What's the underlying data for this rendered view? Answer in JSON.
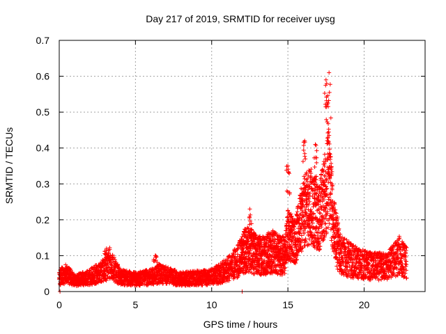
{
  "chart_data": {
    "type": "scatter",
    "title": "Day 217 of 2019, SRMTID for receiver uysg",
    "xlabel": "GPS time / hours",
    "ylabel": "SRMTID / TECUs",
    "xlim": [
      0,
      24
    ],
    "ylim": [
      0,
      0.7
    ],
    "xticks": [
      0,
      5,
      10,
      15,
      20
    ],
    "xtick_labels": [
      "0",
      "5",
      "10",
      "15",
      "20"
    ],
    "yticks": [
      0,
      0.1,
      0.2,
      0.3,
      0.4,
      0.5,
      0.6,
      0.7
    ],
    "ytick_labels": [
      "0",
      "0.1",
      "0.2",
      "0.3",
      "0.4",
      "0.5",
      "0.6",
      "0.7"
    ],
    "grid": true,
    "marker": "+",
    "color": "#ff0000",
    "series": [
      {
        "name": "SRMTID",
        "profile": [
          {
            "x": 0.0,
            "y": 0.04
          },
          {
            "x": 0.5,
            "y": 0.05
          },
          {
            "x": 1.0,
            "y": 0.03
          },
          {
            "x": 2.0,
            "y": 0.04
          },
          {
            "x": 3.0,
            "y": 0.06
          },
          {
            "x": 3.3,
            "y": 0.08
          },
          {
            "x": 4.0,
            "y": 0.04
          },
          {
            "x": 5.0,
            "y": 0.035
          },
          {
            "x": 6.0,
            "y": 0.04
          },
          {
            "x": 6.5,
            "y": 0.05
          },
          {
            "x": 8.0,
            "y": 0.035
          },
          {
            "x": 10.0,
            "y": 0.04
          },
          {
            "x": 11.0,
            "y": 0.06
          },
          {
            "x": 11.8,
            "y": 0.09
          },
          {
            "x": 12.3,
            "y": 0.12
          },
          {
            "x": 13.0,
            "y": 0.1
          },
          {
            "x": 14.0,
            "y": 0.11
          },
          {
            "x": 14.8,
            "y": 0.1
          },
          {
            "x": 15.0,
            "y": 0.16
          },
          {
            "x": 15.5,
            "y": 0.14
          },
          {
            "x": 16.0,
            "y": 0.22
          },
          {
            "x": 16.5,
            "y": 0.24
          },
          {
            "x": 17.0,
            "y": 0.2
          },
          {
            "x": 17.5,
            "y": 0.28
          },
          {
            "x": 17.7,
            "y": 0.33
          },
          {
            "x": 18.0,
            "y": 0.18
          },
          {
            "x": 18.5,
            "y": 0.1
          },
          {
            "x": 19.5,
            "y": 0.08
          },
          {
            "x": 20.5,
            "y": 0.07
          },
          {
            "x": 21.5,
            "y": 0.07
          },
          {
            "x": 22.3,
            "y": 0.1
          },
          {
            "x": 22.8,
            "y": 0.08
          }
        ],
        "peaks": [
          {
            "x": 15.0,
            "y": 0.35
          },
          {
            "x": 16.1,
            "y": 0.42
          },
          {
            "x": 16.8,
            "y": 0.41
          },
          {
            "x": 17.5,
            "y": 0.59
          },
          {
            "x": 17.7,
            "y": 0.61
          },
          {
            "x": 12.5,
            "y": 0.23
          },
          {
            "x": 3.1,
            "y": 0.12
          },
          {
            "x": 6.3,
            "y": 0.1
          }
        ],
        "outliers": [
          {
            "x": 0.05,
            "y": 0.0
          },
          {
            "x": 12.0,
            "y": 0.0
          }
        ]
      }
    ]
  }
}
